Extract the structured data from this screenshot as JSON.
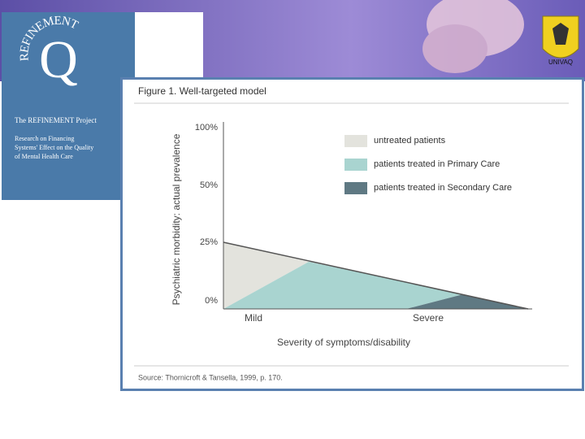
{
  "logo": {
    "arc_text": "REFINEMENT",
    "letter": "Q"
  },
  "left_panel": {
    "title": "The REFINEMENT Project",
    "lines": [
      "Research on Financing",
      "Systems' Effect on the Quality",
      "of Mental Health Care"
    ]
  },
  "university": {
    "label": "UNIVAQ"
  },
  "figure": {
    "title": "Figure 1. Well-targeted model",
    "y_axis_label": "Psychiatric morbidity: actual prevalence",
    "y_tick_labels": [
      "100%",
      "50%",
      "25%",
      "0%"
    ],
    "x_tick_labels": [
      "Mild",
      "Severe"
    ],
    "x_axis_label": "Severity of symptoms/disability",
    "legend": [
      {
        "label": "untreated patients",
        "color": "#e3e3dd"
      },
      {
        "label": "patients treated in Primary Care",
        "color": "#a9d4d0"
      },
      {
        "label": "patients treated in Secondary Care",
        "color": "#5f7983"
      }
    ],
    "source": "Source: Thornicroft & Tansella, 1999, p. 170."
  }
}
